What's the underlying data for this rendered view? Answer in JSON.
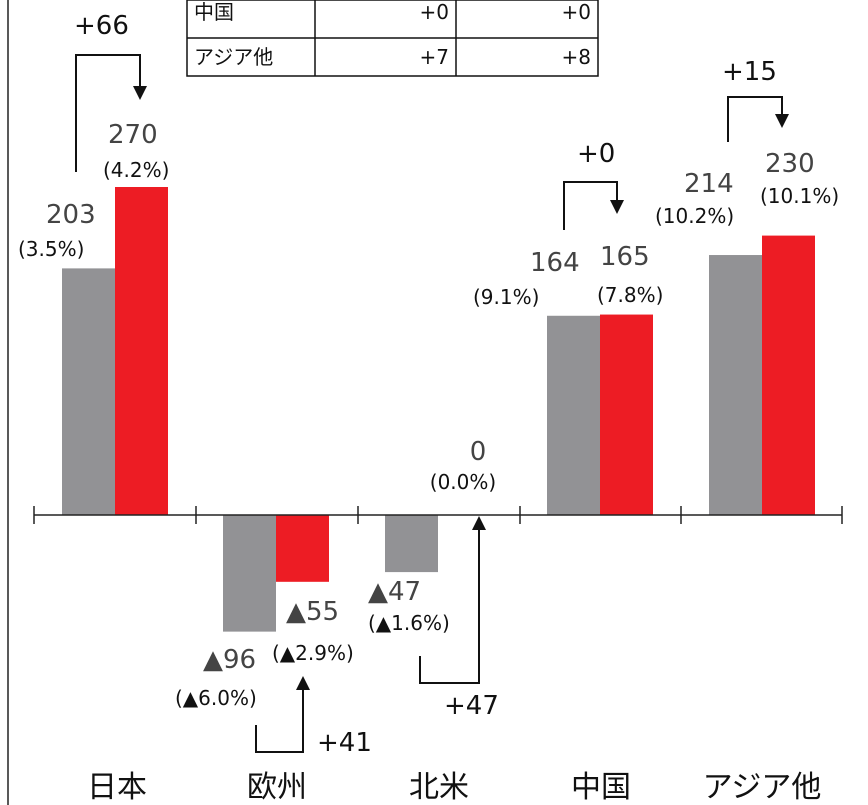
{
  "chart_data": {
    "type": "bar",
    "categories": [
      "日本",
      "欧州",
      "北米",
      "中国",
      "アジア他"
    ],
    "series": [
      {
        "values": [
          203,
          -96,
          -47,
          164,
          214
        ],
        "labels": [
          "203",
          "▲96",
          "▲47",
          "164",
          "214"
        ],
        "pct_labels": [
          "(3.5%)",
          "(▲6.0%)",
          "(▲1.6%)",
          "(9.1%)",
          "(10.2%)"
        ],
        "color": "#929295"
      },
      {
        "values": [
          270,
          -55,
          0,
          165,
          230
        ],
        "labels": [
          "270",
          "▲55",
          "0",
          "165",
          "230"
        ],
        "pct_labels": [
          "(4.2%)",
          "(▲2.9%)",
          "(0.0%)",
          "(7.8%)",
          "(10.1%)"
        ],
        "color": "#ed1c24"
      }
    ],
    "deltas": [
      "+66",
      "+41",
      "+47",
      "+0",
      "+15"
    ],
    "ylim": [
      -160,
      320
    ],
    "grid": false,
    "legend": "none"
  },
  "table": {
    "rows": [
      {
        "region": "中国",
        "a": "+0",
        "b": "+0"
      },
      {
        "region": "アジア他",
        "a": "+7",
        "b": "+8"
      }
    ]
  },
  "colors": {
    "prior": "#929295",
    "current": "#ed1c24",
    "axis": "#222222"
  }
}
